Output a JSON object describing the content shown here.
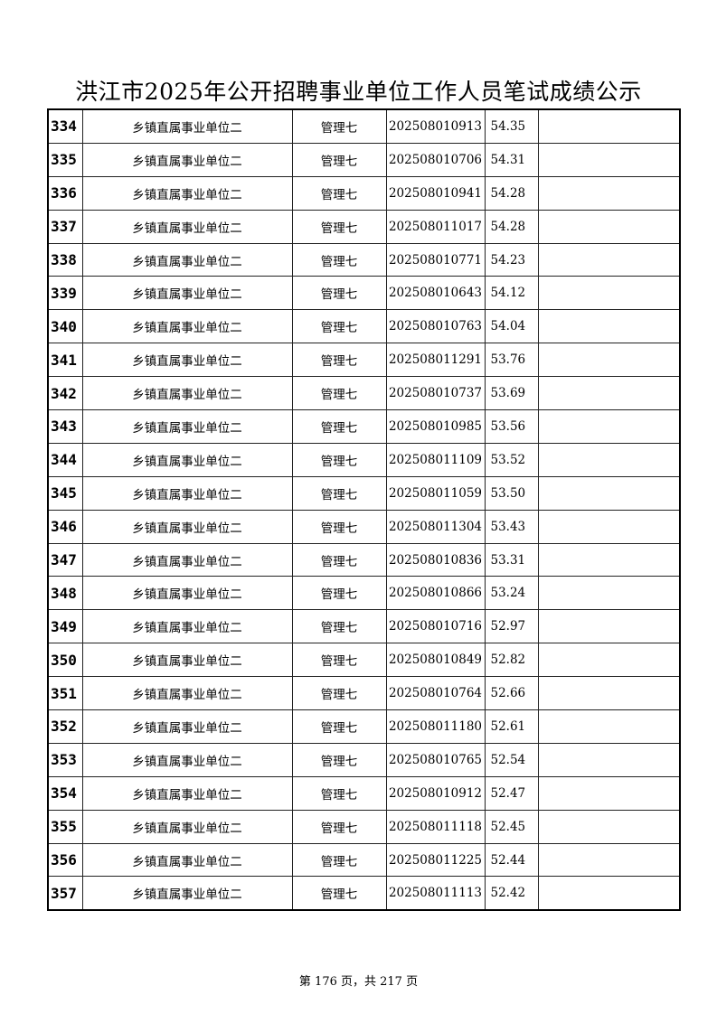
{
  "title": "洪江市2025年公开招聘事业单位工作人员笔试成绩公示",
  "rows": [
    {
      "no": "334",
      "unit": "乡镇直属事业单位二",
      "post": "管理七",
      "exam_id": "202508010913",
      "score": "54.35",
      "note": ""
    },
    {
      "no": "335",
      "unit": "乡镇直属事业单位二",
      "post": "管理七",
      "exam_id": "202508010706",
      "score": "54.31",
      "note": ""
    },
    {
      "no": "336",
      "unit": "乡镇直属事业单位二",
      "post": "管理七",
      "exam_id": "202508010941",
      "score": "54.28",
      "note": ""
    },
    {
      "no": "337",
      "unit": "乡镇直属事业单位二",
      "post": "管理七",
      "exam_id": "202508011017",
      "score": "54.28",
      "note": ""
    },
    {
      "no": "338",
      "unit": "乡镇直属事业单位二",
      "post": "管理七",
      "exam_id": "202508010771",
      "score": "54.23",
      "note": ""
    },
    {
      "no": "339",
      "unit": "乡镇直属事业单位二",
      "post": "管理七",
      "exam_id": "202508010643",
      "score": "54.12",
      "note": ""
    },
    {
      "no": "340",
      "unit": "乡镇直属事业单位二",
      "post": "管理七",
      "exam_id": "202508010763",
      "score": "54.04",
      "note": ""
    },
    {
      "no": "341",
      "unit": "乡镇直属事业单位二",
      "post": "管理七",
      "exam_id": "202508011291",
      "score": "53.76",
      "note": ""
    },
    {
      "no": "342",
      "unit": "乡镇直属事业单位二",
      "post": "管理七",
      "exam_id": "202508010737",
      "score": "53.69",
      "note": ""
    },
    {
      "no": "343",
      "unit": "乡镇直属事业单位二",
      "post": "管理七",
      "exam_id": "202508010985",
      "score": "53.56",
      "note": ""
    },
    {
      "no": "344",
      "unit": "乡镇直属事业单位二",
      "post": "管理七",
      "exam_id": "202508011109",
      "score": "53.52",
      "note": ""
    },
    {
      "no": "345",
      "unit": "乡镇直属事业单位二",
      "post": "管理七",
      "exam_id": "202508011059",
      "score": "53.50",
      "note": ""
    },
    {
      "no": "346",
      "unit": "乡镇直属事业单位二",
      "post": "管理七",
      "exam_id": "202508011304",
      "score": "53.43",
      "note": ""
    },
    {
      "no": "347",
      "unit": "乡镇直属事业单位二",
      "post": "管理七",
      "exam_id": "202508010836",
      "score": "53.31",
      "note": ""
    },
    {
      "no": "348",
      "unit": "乡镇直属事业单位二",
      "post": "管理七",
      "exam_id": "202508010866",
      "score": "53.24",
      "note": ""
    },
    {
      "no": "349",
      "unit": "乡镇直属事业单位二",
      "post": "管理七",
      "exam_id": "202508010716",
      "score": "52.97",
      "note": ""
    },
    {
      "no": "350",
      "unit": "乡镇直属事业单位二",
      "post": "管理七",
      "exam_id": "202508010849",
      "score": "52.82",
      "note": ""
    },
    {
      "no": "351",
      "unit": "乡镇直属事业单位二",
      "post": "管理七",
      "exam_id": "202508010764",
      "score": "52.66",
      "note": ""
    },
    {
      "no": "352",
      "unit": "乡镇直属事业单位二",
      "post": "管理七",
      "exam_id": "202508011180",
      "score": "52.61",
      "note": ""
    },
    {
      "no": "353",
      "unit": "乡镇直属事业单位二",
      "post": "管理七",
      "exam_id": "202508010765",
      "score": "52.54",
      "note": ""
    },
    {
      "no": "354",
      "unit": "乡镇直属事业单位二",
      "post": "管理七",
      "exam_id": "202508010912",
      "score": "52.47",
      "note": ""
    },
    {
      "no": "355",
      "unit": "乡镇直属事业单位二",
      "post": "管理七",
      "exam_id": "202508011118",
      "score": "52.45",
      "note": ""
    },
    {
      "no": "356",
      "unit": "乡镇直属事业单位二",
      "post": "管理七",
      "exam_id": "202508011225",
      "score": "52.44",
      "note": ""
    },
    {
      "no": "357",
      "unit": "乡镇直属事业单位二",
      "post": "管理七",
      "exam_id": "202508011113",
      "score": "52.42",
      "note": ""
    }
  ],
  "footer": "第 176 页，共 217 页"
}
